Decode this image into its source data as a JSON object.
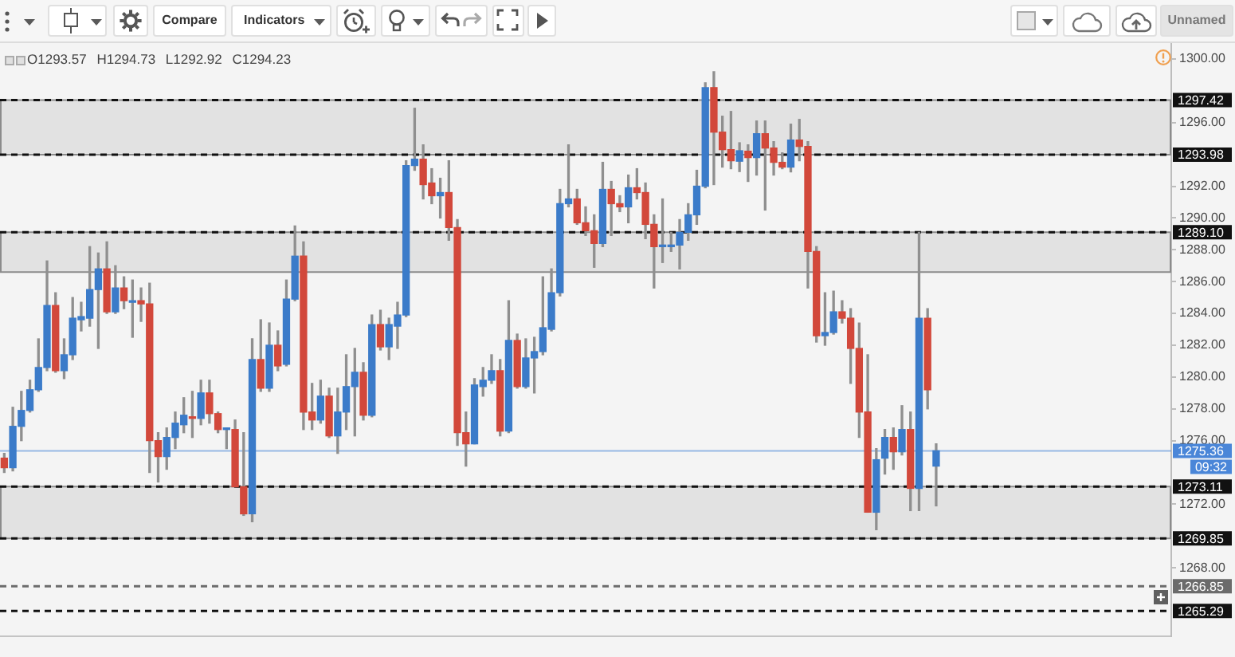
{
  "chart_data": {
    "type": "candlestick",
    "categories": [
      null,
      null,
      null,
      null,
      null,
      null,
      null,
      null,
      null,
      null,
      null,
      null,
      null,
      null,
      null,
      null,
      null,
      null,
      null,
      null,
      null,
      null,
      null,
      null,
      null,
      null,
      null,
      null,
      null,
      null,
      null,
      null,
      null,
      null,
      null,
      null,
      null,
      null,
      null,
      null,
      null,
      null,
      null,
      null,
      null,
      null,
      null,
      null,
      null,
      null,
      null,
      null,
      null,
      null,
      null,
      null,
      null,
      null,
      null,
      null,
      null,
      null,
      null,
      null,
      null,
      null,
      null,
      null,
      null,
      null,
      null,
      null,
      null,
      null,
      null,
      null,
      null,
      null,
      null,
      null,
      null,
      null,
      null,
      null,
      null,
      null,
      null,
      null,
      null,
      null,
      null,
      null,
      null,
      null,
      null,
      null,
      null,
      null,
      null,
      null,
      null,
      null,
      null,
      null,
      null,
      null,
      null,
      null,
      null,
      null,
      null,
      null,
      null,
      null,
      null,
      null,
      null,
      null,
      null,
      null,
      null,
      null,
      null,
      null,
      null,
      null,
      null,
      null,
      null,
      null,
      null,
      null,
      null,
      null,
      null,
      null,
      null
    ],
    "ohlc": [
      [
        1274.9,
        1275.2,
        1274.0,
        1274.3
      ],
      [
        1274.3,
        1278.1,
        1274.1,
        1276.9
      ],
      [
        1276.9,
        1279.1,
        1276.0,
        1277.9
      ],
      [
        1277.9,
        1279.8,
        1277.8,
        1279.2
      ],
      [
        1279.2,
        1282.4,
        1279.1,
        1280.6
      ],
      [
        1280.6,
        1287.3,
        1280.4,
        1284.5
      ],
      [
        1284.5,
        1285.3,
        1280.3,
        1280.4
      ],
      [
        1280.4,
        1282.4,
        1279.9,
        1281.4
      ],
      [
        1281.4,
        1285.0,
        1281.1,
        1283.7
      ],
      [
        1283.6,
        1284.7,
        1282.9,
        1283.8
      ],
      [
        1283.7,
        1288.2,
        1283.2,
        1285.5
      ],
      [
        1285.5,
        1287.8,
        1281.8,
        1286.8
      ],
      [
        1286.8,
        1288.5,
        1284.0,
        1284.1
      ],
      [
        1284.1,
        1287.0,
        1284.0,
        1285.6
      ],
      [
        1285.6,
        1286.3,
        1284.3,
        1284.8
      ],
      [
        1284.7,
        1286.1,
        1282.5,
        1284.8
      ],
      [
        1284.8,
        1285.6,
        1283.5,
        1284.6
      ],
      [
        1284.6,
        1285.9,
        1274.0,
        1276.0
      ],
      [
        1276.0,
        1276.5,
        1273.4,
        1275.0
      ],
      [
        1275.0,
        1276.8,
        1274.2,
        1276.2
      ],
      [
        1276.2,
        1277.8,
        1275.5,
        1277.1
      ],
      [
        1277.0,
        1278.7,
        1276.5,
        1277.6
      ],
      [
        1277.5,
        1279.1,
        1276.2,
        1277.4
      ],
      [
        1277.4,
        1279.8,
        1277.0,
        1279.0
      ],
      [
        1279.0,
        1279.8,
        1277.1,
        1277.7
      ],
      [
        1277.7,
        1277.8,
        1276.5,
        1276.7
      ],
      [
        1276.7,
        1276.8,
        1275.5,
        1276.7
      ],
      [
        1276.7,
        1277.3,
        1273.1,
        1273.1
      ],
      [
        1273.1,
        1276.5,
        1271.3,
        1271.4
      ],
      [
        1271.4,
        1282.4,
        1270.9,
        1281.1
      ],
      [
        1281.1,
        1283.6,
        1279.1,
        1279.3
      ],
      [
        1279.3,
        1283.4,
        1279.1,
        1282.0
      ],
      [
        1282.0,
        1282.9,
        1280.4,
        1280.7
      ],
      [
        1280.8,
        1286.1,
        1280.7,
        1284.9
      ],
      [
        1284.9,
        1289.5,
        1284.8,
        1287.6
      ],
      [
        1287.6,
        1288.5,
        1276.7,
        1277.8
      ],
      [
        1277.8,
        1279.6,
        1276.7,
        1277.3
      ],
      [
        1277.3,
        1279.8,
        1277.1,
        1278.8
      ],
      [
        1278.8,
        1279.3,
        1276.2,
        1276.3
      ],
      [
        1276.3,
        1279.3,
        1275.2,
        1277.8
      ],
      [
        1277.8,
        1281.4,
        1276.7,
        1279.4
      ],
      [
        1279.4,
        1281.8,
        1276.3,
        1280.3
      ],
      [
        1280.3,
        1280.9,
        1277.3,
        1277.6
      ],
      [
        1277.6,
        1283.9,
        1277.5,
        1283.3
      ],
      [
        1283.3,
        1284.2,
        1281.7,
        1281.9
      ],
      [
        1281.9,
        1283.7,
        1281.1,
        1283.3
      ],
      [
        1283.2,
        1284.7,
        1281.8,
        1283.9
      ],
      [
        1283.9,
        1293.6,
        1283.8,
        1293.3
      ],
      [
        1293.3,
        1296.9,
        1293.0,
        1293.7
      ],
      [
        1293.7,
        1294.6,
        1291.2,
        1292.1
      ],
      [
        1292.2,
        1293.1,
        1290.9,
        1291.4
      ],
      [
        1291.4,
        1292.5,
        1290.0,
        1291.6
      ],
      [
        1291.6,
        1293.6,
        1288.6,
        1289.4
      ],
      [
        1289.4,
        1289.9,
        1275.7,
        1276.5
      ],
      [
        1276.5,
        1277.8,
        1274.4,
        1275.8
      ],
      [
        1275.8,
        1279.9,
        1275.8,
        1279.5
      ],
      [
        1279.4,
        1280.6,
        1278.8,
        1279.8
      ],
      [
        1279.8,
        1281.4,
        1279.6,
        1280.4
      ],
      [
        1280.4,
        1281.1,
        1276.3,
        1276.6
      ],
      [
        1276.6,
        1284.8,
        1276.5,
        1282.3
      ],
      [
        1282.3,
        1282.7,
        1279.3,
        1279.4
      ],
      [
        1279.4,
        1282.4,
        1279.3,
        1281.2
      ],
      [
        1281.2,
        1282.5,
        1279.0,
        1281.6
      ],
      [
        1281.6,
        1286.3,
        1281.4,
        1283.1
      ],
      [
        1283.0,
        1286.8,
        1282.9,
        1285.3
      ],
      [
        1285.3,
        1291.8,
        1285.1,
        1290.9
      ],
      [
        1290.9,
        1294.6,
        1290.7,
        1291.2
      ],
      [
        1291.2,
        1291.8,
        1289.6,
        1289.7
      ],
      [
        1289.7,
        1290.7,
        1288.9,
        1289.2
      ],
      [
        1289.2,
        1290.2,
        1286.9,
        1288.4
      ],
      [
        1288.4,
        1293.5,
        1288.2,
        1291.8
      ],
      [
        1291.8,
        1292.3,
        1288.9,
        1290.9
      ],
      [
        1290.9,
        1291.4,
        1290.4,
        1290.7
      ],
      [
        1290.7,
        1292.7,
        1289.7,
        1291.9
      ],
      [
        1291.9,
        1293.1,
        1291.2,
        1291.6
      ],
      [
        1291.6,
        1292.2,
        1288.7,
        1289.6
      ],
      [
        1289.6,
        1290.2,
        1285.6,
        1288.2
      ],
      [
        1288.2,
        1291.2,
        1287.2,
        1288.3
      ],
      [
        1288.2,
        1289.1,
        1287.9,
        1288.3
      ],
      [
        1288.3,
        1289.9,
        1286.8,
        1289.1
      ],
      [
        1289.1,
        1290.9,
        1288.6,
        1290.2
      ],
      [
        1290.2,
        1293.0,
        1289.6,
        1292.0
      ],
      [
        1292.0,
        1298.5,
        1291.9,
        1298.2
      ],
      [
        1298.2,
        1299.2,
        1292.1,
        1295.4
      ],
      [
        1295.4,
        1296.4,
        1293.2,
        1294.3
      ],
      [
        1294.3,
        1296.7,
        1293.1,
        1293.6
      ],
      [
        1293.57,
        1294.73,
        1292.92,
        1294.23
      ],
      [
        1294.2,
        1294.6,
        1292.3,
        1293.8
      ],
      [
        1293.8,
        1296.1,
        1292.7,
        1295.3
      ],
      [
        1295.3,
        1296.1,
        1290.5,
        1294.4
      ],
      [
        1294.4,
        1294.8,
        1292.7,
        1293.5
      ],
      [
        1293.5,
        1294.1,
        1293.1,
        1293.2
      ],
      [
        1293.2,
        1295.9,
        1292.9,
        1294.9
      ],
      [
        1294.9,
        1296.2,
        1293.6,
        1294.5
      ],
      [
        1294.5,
        1294.8,
        1285.6,
        1287.9
      ],
      [
        1287.9,
        1288.2,
        1282.2,
        1282.6
      ],
      [
        1282.6,
        1285.3,
        1282.0,
        1282.8
      ],
      [
        1282.8,
        1285.4,
        1282.7,
        1284.1
      ],
      [
        1284.1,
        1284.8,
        1283.4,
        1283.7
      ],
      [
        1283.7,
        1284.3,
        1279.6,
        1281.8
      ],
      [
        1281.8,
        1283.4,
        1276.2,
        1277.8
      ],
      [
        1277.8,
        1281.4,
        1271.5,
        1271.5
      ],
      [
        1271.5,
        1275.5,
        1270.4,
        1274.8
      ],
      [
        1274.9,
        1276.7,
        1273.9,
        1276.2
      ],
      [
        1276.2,
        1276.8,
        1274.2,
        1275.3
      ],
      [
        1275.3,
        1278.2,
        1275.1,
        1276.7
      ],
      [
        1276.7,
        1277.8,
        1271.6,
        1273.0
      ],
      [
        1273.0,
        1289.1,
        1271.6,
        1283.7
      ],
      [
        1283.7,
        1284.3,
        1278.0,
        1279.2
      ],
      [
        1274.4,
        1275.8,
        1271.9,
        1275.36
      ],
      null,
      null,
      null,
      null,
      null,
      null,
      null,
      null,
      null,
      null,
      null,
      null,
      null,
      null,
      null,
      null,
      null,
      null,
      null,
      null,
      null,
      null,
      null,
      null,
      null,
      null,
      null
    ],
    "colors": [
      "#d2483b",
      "#3b7bc9",
      "#3b7bc9",
      "#3b7bc9",
      "#3b7bc9",
      "#3b7bc9",
      "#d2483b",
      "#3b7bc9",
      "#3b7bc9",
      "#3b7bc9",
      "#3b7bc9",
      "#3b7bc9",
      "#d2483b",
      "#3b7bc9",
      "#d2483b",
      "#3b7bc9",
      "#d2483b",
      "#d2483b",
      "#d2483b",
      "#3b7bc9",
      "#3b7bc9",
      "#3b7bc9",
      "#d2483b",
      "#3b7bc9",
      "#d2483b",
      "#d2483b",
      "#3b7bc9",
      "#d2483b",
      "#d2483b",
      "#3b7bc9",
      "#d2483b",
      "#3b7bc9",
      "#d2483b",
      "#3b7bc9",
      "#3b7bc9",
      "#d2483b",
      "#d2483b",
      "#3b7bc9",
      "#d2483b",
      "#3b7bc9",
      "#3b7bc9",
      "#3b7bc9",
      "#d2483b",
      "#3b7bc9",
      "#d2483b",
      "#3b7bc9",
      "#3b7bc9",
      "#3b7bc9",
      "#3b7bc9",
      "#d2483b",
      "#d2483b",
      "#3b7bc9",
      "#d2483b",
      "#d2483b",
      "#d2483b",
      "#3b7bc9",
      "#3b7bc9",
      "#3b7bc9",
      "#d2483b",
      "#3b7bc9",
      "#d2483b",
      "#3b7bc9",
      "#3b7bc9",
      "#3b7bc9",
      "#3b7bc9",
      "#3b7bc9",
      "#3b7bc9",
      "#d2483b",
      "#d2483b",
      "#d2483b",
      "#3b7bc9",
      "#d2483b",
      "#d2483b",
      "#3b7bc9",
      "#d2483b",
      "#d2483b",
      "#d2483b",
      "#3b7bc9",
      "#3b7bc9",
      "#3b7bc9",
      "#3b7bc9",
      "#3b7bc9",
      "#3b7bc9",
      "#d2483b",
      "#d2483b",
      "#d2483b",
      "#3b7bc9",
      "#d2483b",
      "#3b7bc9",
      "#d2483b",
      "#d2483b",
      "#d2483b",
      "#3b7bc9",
      "#d2483b",
      "#d2483b",
      "#d2483b",
      "#3b7bc9",
      "#3b7bc9",
      "#d2483b",
      "#d2483b",
      "#d2483b",
      "#d2483b",
      "#3b7bc9",
      "#3b7bc9",
      "#d2483b",
      "#3b7bc9",
      "#d2483b",
      "#3b7bc9",
      "#d2483b",
      "#3b7bc9",
      null,
      null,
      null,
      null,
      null,
      null,
      null,
      null,
      null,
      null,
      null,
      null,
      null,
      null,
      null,
      null,
      null,
      null,
      null,
      null,
      null,
      null,
      null,
      null,
      null,
      null,
      null
    ],
    "ylim": [
      1263.7,
      1301.0
    ],
    "yticks": [
      {
        "value": 1300,
        "label": "1300.00"
      },
      {
        "value": 1296,
        "label": "1296.00"
      },
      {
        "value": 1292,
        "label": "1292.00"
      },
      {
        "value": 1290,
        "label": "1290.00"
      },
      {
        "value": 1288,
        "label": "1288.00"
      },
      {
        "value": 1286,
        "label": "1286.00"
      },
      {
        "value": 1284,
        "label": "1284.00"
      },
      {
        "value": 1282,
        "label": "1282.00"
      },
      {
        "value": 1280,
        "label": "1280.00"
      },
      {
        "value": 1278,
        "label": "1278.00"
      },
      {
        "value": 1276,
        "label": "1276.00"
      },
      {
        "value": 1272,
        "label": "1272.00"
      },
      {
        "value": 1268,
        "label": "1268.00"
      }
    ],
    "tick_labels": "y",
    "bands": [
      {
        "axis": "y",
        "from": 1293.98,
        "to": 1297.42,
        "color": "#e2e2e2"
      },
      {
        "axis": "y",
        "from": 1286.6,
        "to": 1289.1,
        "color": "#e2e2e2"
      },
      {
        "axis": "y",
        "from": 1269.85,
        "to": 1273.11,
        "color": "#e2e2e2"
      }
    ],
    "ref_lines": [
      {
        "axis": "y",
        "value": 1297.42,
        "label": "1297.42",
        "color": "#111111",
        "line_style": "dashed"
      },
      {
        "axis": "y",
        "value": 1293.98,
        "label": "1293.98",
        "color": "#111111",
        "line_style": "dashed"
      },
      {
        "axis": "y",
        "value": 1289.1,
        "label": "1289.10",
        "color": "#111111",
        "line_style": "dashed"
      },
      {
        "axis": "y",
        "value": 1273.11,
        "label": "1273.11",
        "color": "#111111",
        "line_style": "dashed"
      },
      {
        "axis": "y",
        "value": 1269.85,
        "label": "1269.85",
        "color": "#111111",
        "line_style": "dashed"
      },
      {
        "axis": "y",
        "value": 1265.29,
        "label": "1265.29",
        "color": "#111111",
        "line_style": "dashed"
      },
      {
        "axis": "y",
        "value": 1275.36,
        "label": "1275.36",
        "color": "#4a86d8",
        "line_style": "solid"
      },
      {
        "axis": "y",
        "value": 1266.85,
        "label": "1266.85",
        "color": "#6b6b6b",
        "line_style": "dashed"
      }
    ],
    "annotations": [
      "O1293.57 H1294.73 L1292.92 C1294.23",
      "Compare",
      "Indicators",
      "Unnamed",
      "09:32"
    ]
  }
}
